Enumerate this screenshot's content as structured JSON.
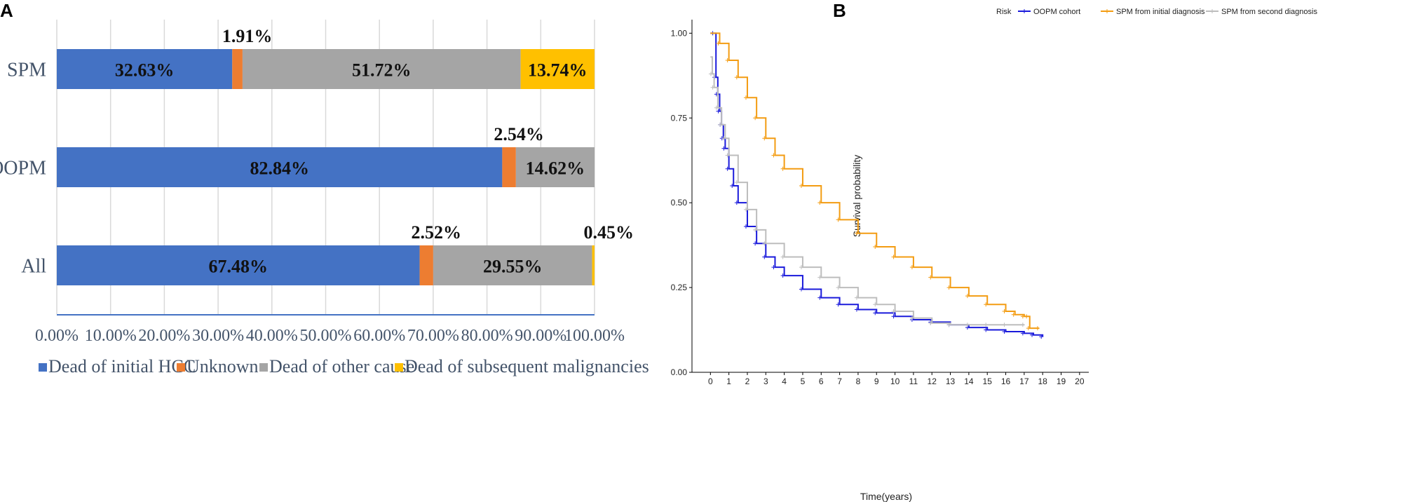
{
  "figure": {
    "panel_a_label": "A",
    "panel_b_label": "B"
  },
  "colors": {
    "dead_initial": "#4472c4",
    "unknown": "#ed7d31",
    "dead_other": "#a5a5a5",
    "dead_subsequent": "#ffc000",
    "oopm": "#1a1adb",
    "spm_initial": "#f39c12",
    "spm_second": "#bdbdbd"
  },
  "chart_data": [
    {
      "type": "bar",
      "orientation": "horizontal",
      "stacked": true,
      "categories": [
        "SPM",
        "OOPM",
        "All"
      ],
      "series": [
        {
          "name": "Dead of initial HCC",
          "color_key": "dead_initial",
          "values": [
            32.63,
            82.84,
            67.48
          ],
          "labels": [
            "32.63%",
            "82.84%",
            "67.48%"
          ]
        },
        {
          "name": "Unknown",
          "color_key": "unknown",
          "values": [
            1.91,
            2.54,
            2.52
          ],
          "labels": [
            "1.91%",
            "2.54%",
            "2.52%"
          ]
        },
        {
          "name": "Dead of other cause",
          "color_key": "dead_other",
          "values": [
            51.72,
            14.62,
            29.55
          ],
          "labels": [
            "51.72%",
            "14.62%",
            "29.55%"
          ]
        },
        {
          "name": "Dead of subsequent malignancies",
          "color_key": "dead_subsequent",
          "values": [
            13.74,
            0,
            0.45
          ],
          "labels": [
            "13.74%",
            "",
            "0.45%"
          ]
        }
      ],
      "x_ticks": [
        "0.00%",
        "10.00%",
        "20.00%",
        "30.00%",
        "40.00%",
        "50.00%",
        "60.00%",
        "70.00%",
        "80.00%",
        "90.00%",
        "100.00%"
      ],
      "xlim": [
        0,
        100
      ],
      "legend": "bottom",
      "title": "",
      "xlabel": "",
      "ylabel": ""
    },
    {
      "type": "line",
      "subtype": "kaplan-meier",
      "xlabel": "Time(years)",
      "ylabel": "Survival probability",
      "xlim": [
        -1,
        20.5
      ],
      "ylim": [
        0,
        1.04
      ],
      "x_ticks": [
        0,
        1,
        2,
        3,
        4,
        5,
        6,
        7,
        8,
        9,
        10,
        11,
        12,
        13,
        14,
        15,
        16,
        17,
        18,
        19,
        20
      ],
      "y_ticks": [
        "0.00",
        "0.25",
        "0.50",
        "0.75",
        "1.00"
      ],
      "legend_title": "Risk",
      "legend": "top",
      "series": [
        {
          "name": "OOPM cohort",
          "color_key": "oopm",
          "x": [
            0,
            0.2,
            0.3,
            0.4,
            0.5,
            0.6,
            0.7,
            0.8,
            1,
            1.25,
            1.5,
            2,
            2.5,
            3,
            3.5,
            4,
            5,
            6,
            7,
            8,
            9,
            10,
            11,
            12,
            13,
            14,
            15,
            16,
            17,
            17.5,
            18
          ],
          "y": [
            1.0,
            1.0,
            0.87,
            0.82,
            0.77,
            0.73,
            0.69,
            0.66,
            0.6,
            0.55,
            0.5,
            0.43,
            0.38,
            0.34,
            0.31,
            0.285,
            0.245,
            0.22,
            0.2,
            0.185,
            0.175,
            0.165,
            0.155,
            0.148,
            0.14,
            0.132,
            0.125,
            0.12,
            0.115,
            0.11,
            0.105
          ]
        },
        {
          "name": "SPM from initial diagnosis",
          "color_key": "spm_initial",
          "x": [
            0,
            0.5,
            1,
            1.5,
            2,
            2.5,
            3,
            3.5,
            4,
            5,
            6,
            7,
            8,
            9,
            10,
            11,
            12,
            13,
            14,
            15,
            16,
            16.5,
            17,
            17.2,
            17.3,
            17.8
          ],
          "y": [
            1.0,
            0.97,
            0.92,
            0.87,
            0.81,
            0.75,
            0.69,
            0.64,
            0.6,
            0.55,
            0.5,
            0.45,
            0.41,
            0.37,
            0.34,
            0.31,
            0.28,
            0.25,
            0.225,
            0.2,
            0.18,
            0.17,
            0.165,
            0.165,
            0.13,
            0.13
          ]
        },
        {
          "name": "SPM from second diagnosis",
          "color_key": "spm_second",
          "x": [
            0,
            0.1,
            0.2,
            0.4,
            0.6,
            0.8,
            1,
            1.5,
            2,
            2.5,
            3,
            4,
            5,
            6,
            7,
            8,
            9,
            10,
            11,
            12,
            13,
            14,
            15,
            16,
            17
          ],
          "y": [
            0.93,
            0.88,
            0.84,
            0.78,
            0.73,
            0.69,
            0.64,
            0.56,
            0.48,
            0.42,
            0.38,
            0.34,
            0.31,
            0.28,
            0.25,
            0.22,
            0.2,
            0.18,
            0.16,
            0.145,
            0.14,
            0.14,
            0.14,
            0.14,
            0.14
          ]
        }
      ]
    }
  ]
}
